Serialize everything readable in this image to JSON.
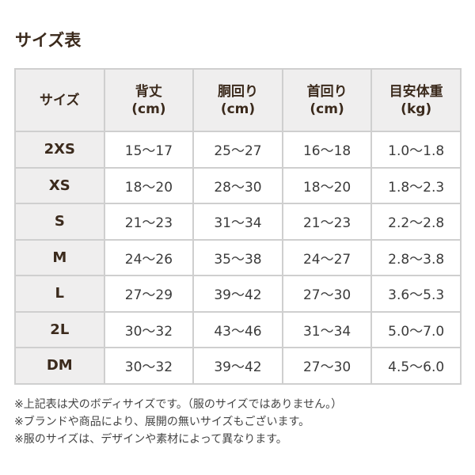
{
  "title": "サイズ表",
  "headers": [
    {
      "l1": "サイズ",
      "l2": ""
    },
    {
      "l1": "背丈",
      "l2": "(cm)"
    },
    {
      "l1": "胴回り",
      "l2": "(cm)"
    },
    {
      "l1": "首回り",
      "l2": "(cm)"
    },
    {
      "l1": "目安体重",
      "l2": "(kg)"
    }
  ],
  "rows": [
    [
      "2XS",
      "15〜17",
      "25〜27",
      "16〜18",
      "1.0〜1.8"
    ],
    [
      "XS",
      "18〜20",
      "28〜30",
      "18〜20",
      "1.8〜2.3"
    ],
    [
      "S",
      "21〜23",
      "31〜34",
      "21〜23",
      "2.2〜2.8"
    ],
    [
      "M",
      "24〜26",
      "35〜38",
      "24〜27",
      "2.8〜3.8"
    ],
    [
      "L",
      "27〜29",
      "39〜42",
      "27〜30",
      "3.6〜5.3"
    ],
    [
      "2L",
      "30〜32",
      "43〜46",
      "31〜34",
      "5.0〜7.0"
    ],
    [
      "DM",
      "30〜32",
      "39〜42",
      "27〜30",
      "4.5〜6.0"
    ]
  ],
  "notes": [
    "※上記表は犬のボディサイズです。（服のサイズではありません。）",
    "※ブランドや商品により、展開の無いサイズもございます。",
    "※服のサイズは、デザインや素材によって異なります。"
  ]
}
